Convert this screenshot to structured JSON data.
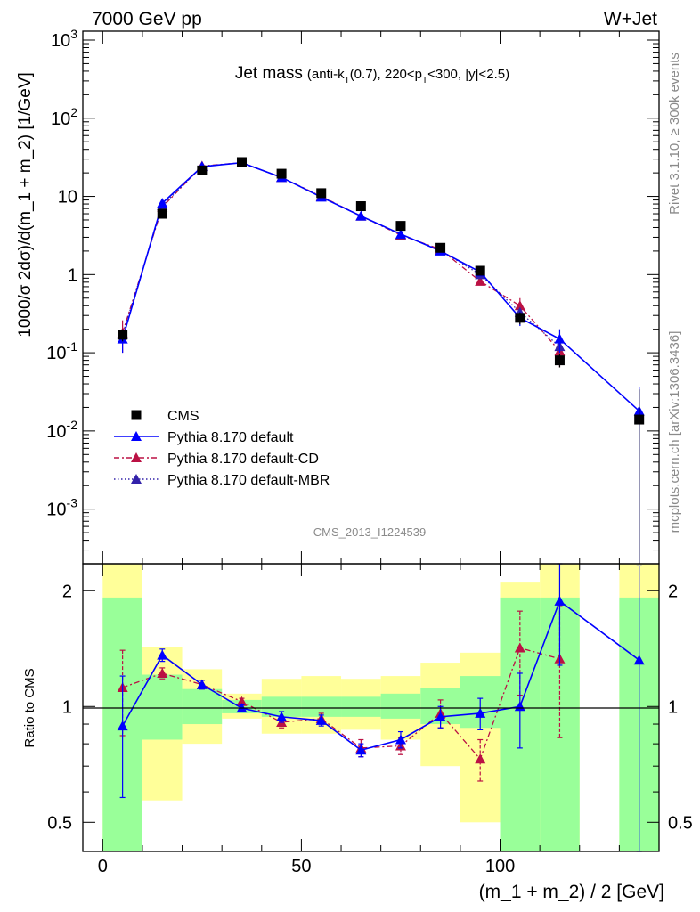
{
  "header": {
    "left": "7000 GeV pp",
    "right": "W+Jet"
  },
  "side_text": {
    "rivet": "Rivet 3.1.10, ≥ 300k events",
    "mcplots": "mcplots.cern.ch [arXiv:1306.3436]"
  },
  "analysis_label": "CMS_2013_I1224539",
  "chart_data": [
    {
      "type": "scatter",
      "panel": "main",
      "title_main": "Jet mass",
      "title_sub": "(anti-k",
      "title_sub_T": "T",
      "title_sub_mid": "(0.7), 220<p",
      "title_sub_end": "<300, |y|<2.5)",
      "ylabel": "1000/σ 2dσ)/d(m_1 + m_2) [1/GeV]",
      "yscale": "log",
      "ylim": [
        0.0002,
        1300
      ],
      "xlim": [
        -5,
        140
      ],
      "y_ticks": [
        {
          "value": 0.001,
          "base": "10",
          "exp": "-3"
        },
        {
          "value": 0.01,
          "base": "10",
          "exp": "-2"
        },
        {
          "value": 0.1,
          "base": "10",
          "exp": "-1"
        },
        {
          "value": 1,
          "base": "1",
          "exp": ""
        },
        {
          "value": 10,
          "base": "10",
          "exp": ""
        },
        {
          "value": 100,
          "base": "10",
          "exp": "2"
        },
        {
          "value": 1000,
          "base": "10",
          "exp": "3"
        }
      ],
      "legend": {
        "placement": "lower-left"
      },
      "series": [
        {
          "name": "CMS",
          "style": "data-square",
          "color": "#000000",
          "x": [
            5,
            15,
            25,
            35,
            45,
            55,
            65,
            75,
            85,
            95,
            105,
            115,
            135
          ],
          "y": [
            0.17,
            6.0,
            21.5,
            27.5,
            19.5,
            11.0,
            7.5,
            4.2,
            2.2,
            1.12,
            0.28,
            0.08,
            0.014
          ],
          "yerr": [
            0.03,
            0.4,
            1.0,
            1.2,
            1.0,
            0.6,
            0.4,
            0.3,
            0.2,
            0.1,
            0.05,
            0.015,
            0.02
          ]
        },
        {
          "name": "Pythia 8.170 default",
          "style": "solid",
          "color": "#0000ff",
          "x": [
            5,
            15,
            25,
            35,
            45,
            55,
            65,
            75,
            85,
            95,
            105,
            115,
            135
          ],
          "y": [
            0.15,
            8.2,
            24.0,
            27.0,
            17.5,
            9.8,
            5.6,
            3.3,
            2.0,
            1.08,
            0.28,
            0.15,
            0.018
          ],
          "yerr": [
            0.05,
            0.5,
            1.0,
            1.0,
            0.8,
            0.5,
            0.3,
            0.2,
            0.15,
            0.1,
            0.06,
            0.05,
            0.019
          ]
        },
        {
          "name": "Pythia 8.170 default-CD",
          "style": "dashdot",
          "color": "#bb1144",
          "x": [
            5,
            15,
            25,
            35,
            45,
            55,
            65,
            75,
            85,
            95,
            105,
            115
          ],
          "y": [
            0.18,
            7.3,
            24.5,
            27.0,
            17.5,
            10.0,
            5.6,
            3.2,
            2.1,
            0.82,
            0.4,
            0.105
          ],
          "yerr": [
            0.08,
            0.5,
            1.0,
            1.0,
            0.8,
            0.5,
            0.3,
            0.2,
            0.15,
            0.08,
            0.1,
            0.04
          ]
        },
        {
          "name": "Pythia 8.170 default-MBR",
          "style": "dotted",
          "color": "#3322aa",
          "x": [
            5,
            15,
            25,
            35,
            45,
            55,
            65,
            75,
            85,
            95,
            105,
            115
          ],
          "y": [
            0.17,
            7.6,
            24.2,
            27.0,
            17.5,
            9.9,
            5.6,
            3.25,
            2.05,
            1.0,
            0.33,
            0.12
          ],
          "yerr": [
            0,
            0,
            0,
            0,
            0,
            0,
            0,
            0,
            0,
            0,
            0,
            0
          ]
        }
      ]
    },
    {
      "type": "scatter",
      "panel": "ratio",
      "ylabel": "Ratio to CMS",
      "xlabel": "(m_1 + m_2) / 2 [GeV]",
      "yscale": "log",
      "ylim": [
        0.42,
        2.35
      ],
      "xlim": [
        -5,
        140
      ],
      "x_ticks": [
        0,
        50,
        100
      ],
      "y_ticks": [
        0.5,
        1,
        2
      ],
      "bands": [
        {
          "x0": 0,
          "x1": 10,
          "inner": [
            0.4,
            1.92
          ],
          "outer": [
            0.4,
            2.35
          ]
        },
        {
          "x0": 10,
          "x1": 20,
          "inner": [
            0.82,
            1.21
          ],
          "outer": [
            0.57,
            1.43
          ]
        },
        {
          "x0": 20,
          "x1": 30,
          "inner": [
            0.9,
            1.11
          ],
          "outer": [
            0.8,
            1.25
          ]
        },
        {
          "x0": 30,
          "x1": 40,
          "inner": [
            0.96,
            1.04
          ],
          "outer": [
            0.93,
            1.08
          ]
        },
        {
          "x0": 40,
          "x1": 50,
          "inner": [
            0.94,
            1.06
          ],
          "outer": [
            0.85,
            1.18
          ]
        },
        {
          "x0": 50,
          "x1": 60,
          "inner": [
            0.94,
            1.06
          ],
          "outer": [
            0.85,
            1.2
          ]
        },
        {
          "x0": 60,
          "x1": 70,
          "inner": [
            0.94,
            1.06
          ],
          "outer": [
            0.87,
            1.18
          ]
        },
        {
          "x0": 70,
          "x1": 80,
          "inner": [
            0.93,
            1.08
          ],
          "outer": [
            0.82,
            1.2
          ]
        },
        {
          "x0": 80,
          "x1": 90,
          "inner": [
            0.9,
            1.12
          ],
          "outer": [
            0.7,
            1.3
          ]
        },
        {
          "x0": 90,
          "x1": 100,
          "inner": [
            0.88,
            1.2
          ],
          "outer": [
            0.5,
            1.38
          ]
        },
        {
          "x0": 100,
          "x1": 110,
          "inner": [
            0.4,
            1.92
          ],
          "outer": [
            0.4,
            2.1
          ]
        },
        {
          "x0": 110,
          "x1": 120,
          "inner": [
            0.4,
            1.92
          ],
          "outer": [
            0.4,
            2.35
          ]
        },
        {
          "x0": 130,
          "x1": 140,
          "inner": [
            0.4,
            1.92
          ],
          "outer": [
            0.4,
            2.35
          ]
        }
      ],
      "band_colors": {
        "inner": "#99ff99",
        "outer": "#ffff99"
      },
      "series": [
        {
          "name": "Pythia 8.170 default",
          "style": "solid",
          "color": "#0000ff",
          "x": [
            5,
            15,
            25,
            35,
            45,
            55,
            65,
            75,
            85,
            95,
            105,
            115,
            135
          ],
          "y": [
            0.89,
            1.36,
            1.14,
            0.99,
            0.94,
            0.92,
            0.77,
            0.82,
            0.94,
            0.96,
            1.0,
            1.88,
            1.32
          ],
          "yerr": [
            0.31,
            0.05,
            0.03,
            0.02,
            0.03,
            0.03,
            0.03,
            0.04,
            0.06,
            0.09,
            0.22,
            0.6,
            1.0
          ]
        },
        {
          "name": "Pythia 8.170 default-CD",
          "style": "dashdot",
          "color": "#bb1144",
          "x": [
            5,
            15,
            25,
            35,
            45,
            55,
            65,
            75,
            85,
            95,
            105,
            115
          ],
          "y": [
            1.12,
            1.22,
            1.14,
            1.03,
            0.91,
            0.93,
            0.78,
            0.79,
            0.96,
            0.73,
            1.42,
            1.33
          ],
          "yerr": [
            0.28,
            0.04,
            0.03,
            0.02,
            0.03,
            0.03,
            0.04,
            0.04,
            0.08,
            0.09,
            0.35,
            0.5
          ]
        }
      ]
    }
  ]
}
